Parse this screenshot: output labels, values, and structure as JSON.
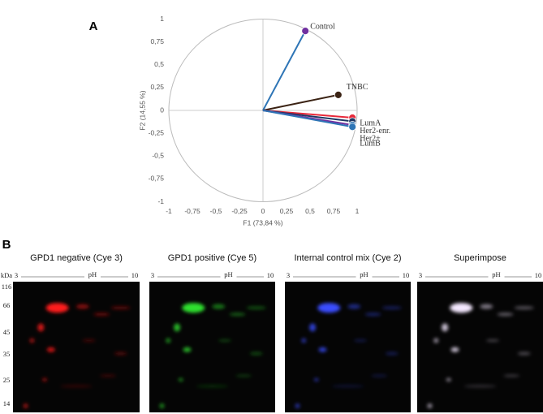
{
  "chart_data": {
    "type": "scatter",
    "panel_label": "A",
    "xlabel": "F1 (73,84 %)",
    "ylabel": "F2 (14,55 %)",
    "xlim": [
      -1,
      1
    ],
    "ylim": [
      -1,
      1
    ],
    "xticks": [
      -1,
      {
        "value": -0.75,
        "label": "-0,75"
      },
      {
        "value": -0.5,
        "label": "-0,5"
      },
      {
        "value": -0.25,
        "label": "-0,25"
      },
      0,
      {
        "value": 0.25,
        "label": "0,25"
      },
      {
        "value": 0.5,
        "label": "0,5"
      },
      {
        "value": 0.75,
        "label": "0,75"
      },
      1
    ],
    "yticks": [
      -1,
      {
        "value": -0.75,
        "label": "-0,75"
      },
      {
        "value": -0.5,
        "label": "-0,5"
      },
      {
        "value": -0.25,
        "label": "-0,25"
      },
      0,
      {
        "value": 0.25,
        "label": "0,25"
      },
      {
        "value": 0.5,
        "label": "0,5"
      },
      {
        "value": 0.75,
        "label": "0,75"
      },
      1
    ],
    "series": [
      {
        "name": "Control",
        "color": "#7030a0",
        "line_color": "#2e75b6",
        "x": [
          0.45
        ],
        "values": [
          0.87
        ]
      },
      {
        "name": "TNBC",
        "color": "#3b2314",
        "line_color": "#3b2314",
        "x": [
          0.8
        ],
        "values": [
          0.17
        ]
      },
      {
        "name": "LumA",
        "color": "#e8293a",
        "line_color": "#e8293a",
        "x": [
          0.95
        ],
        "values": [
          -0.08
        ]
      },
      {
        "name": "Her2-enr.",
        "color": "#1f3864",
        "line_color": "#1f3864",
        "x": [
          0.95
        ],
        "values": [
          -0.12
        ]
      },
      {
        "name": "Her2+",
        "color": "#2e75b6",
        "line_color": "#7030a0",
        "x": [
          0.95
        ],
        "values": [
          -0.16
        ]
      },
      {
        "name": "LumB",
        "color": "#2e75b6",
        "line_color": "#2e75b6",
        "x": [
          0.95
        ],
        "values": [
          -0.18
        ]
      }
    ]
  },
  "panel_b": {
    "label": "B",
    "kda_label": "kDa",
    "kda_markers": [
      116,
      66,
      45,
      35,
      25,
      14
    ],
    "gels": [
      {
        "title": "GPD1 negative (Cye 3)",
        "ph_start": 3,
        "ph_label": "pH",
        "ph_end": 10,
        "color": "#ff1a1a"
      },
      {
        "title": "GPD1 positive (Cye 5)",
        "ph_start": 3,
        "ph_label": "pH",
        "ph_end": 10,
        "color": "#2ee02e"
      },
      {
        "title": "Internal control mix (Cye 2)",
        "ph_start": 3,
        "ph_label": "pH",
        "ph_end": 10,
        "color": "#3a4dff"
      },
      {
        "title": "Superimpose",
        "ph_start": 3,
        "ph_label": "pH",
        "ph_end": 10,
        "color": "#f4e8ff"
      }
    ]
  }
}
